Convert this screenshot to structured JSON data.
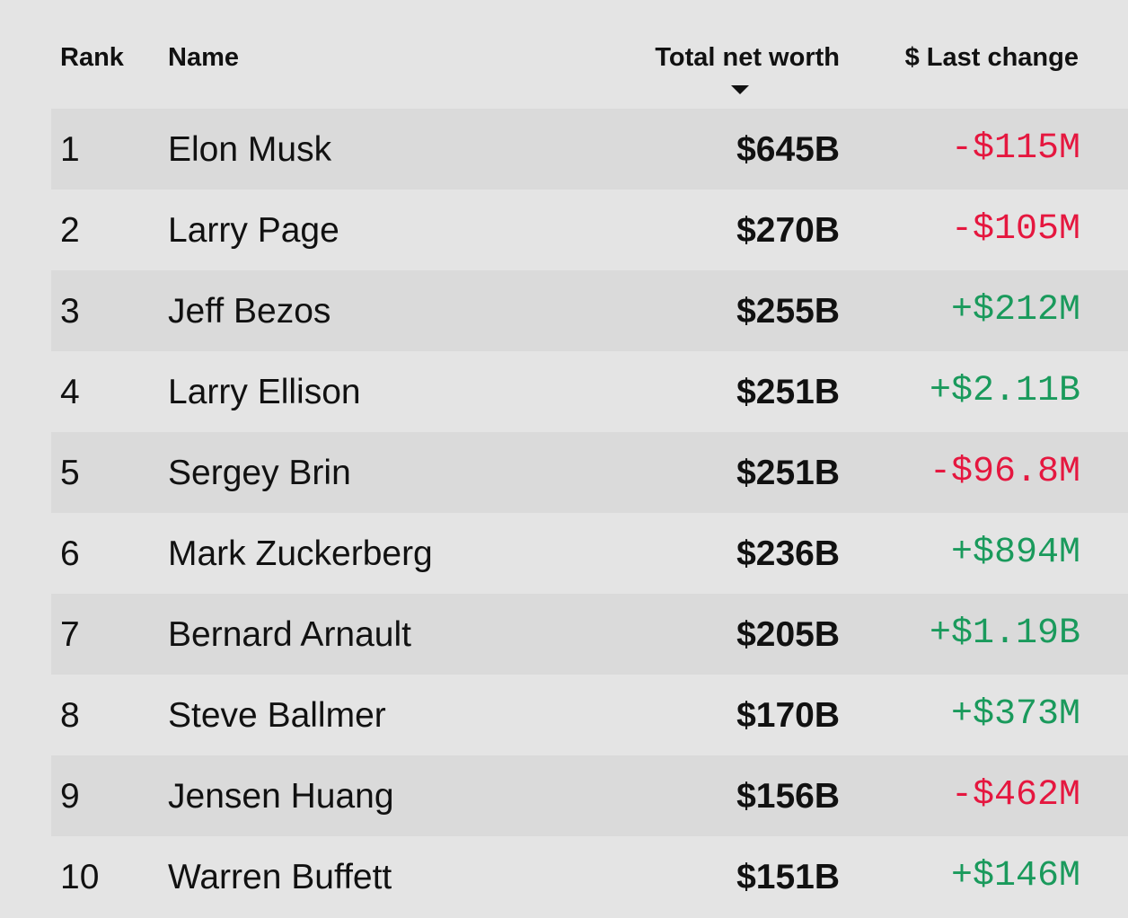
{
  "table": {
    "headers": [
      "Rank",
      "Name",
      "Total net worth",
      "$ Last change"
    ],
    "rows": [
      [
        "1",
        "Elon Musk",
        "$645B",
        "-$115M"
      ],
      [
        "2",
        "Larry Page",
        "$270B",
        "-$105M"
      ],
      [
        "3",
        "Jeff Bezos",
        "$255B",
        "+$212M"
      ],
      [
        "4",
        "Larry Ellison",
        "$251B",
        "+$2.11B"
      ],
      [
        "5",
        "Sergey Brin",
        "$251B",
        "-$96.8M"
      ],
      [
        "6",
        "Mark Zuckerberg",
        "$236B",
        "+$894M"
      ],
      [
        "7",
        "Bernard Arnault",
        "$205B",
        "+$1.19B"
      ],
      [
        "8",
        "Steve Ballmer",
        "$170B",
        "+$373M"
      ],
      [
        "9",
        "Jensen Huang",
        "$156B",
        "-$462M"
      ],
      [
        "10",
        "Warren Buffett",
        "$151B",
        "+$146M"
      ]
    ]
  }
}
